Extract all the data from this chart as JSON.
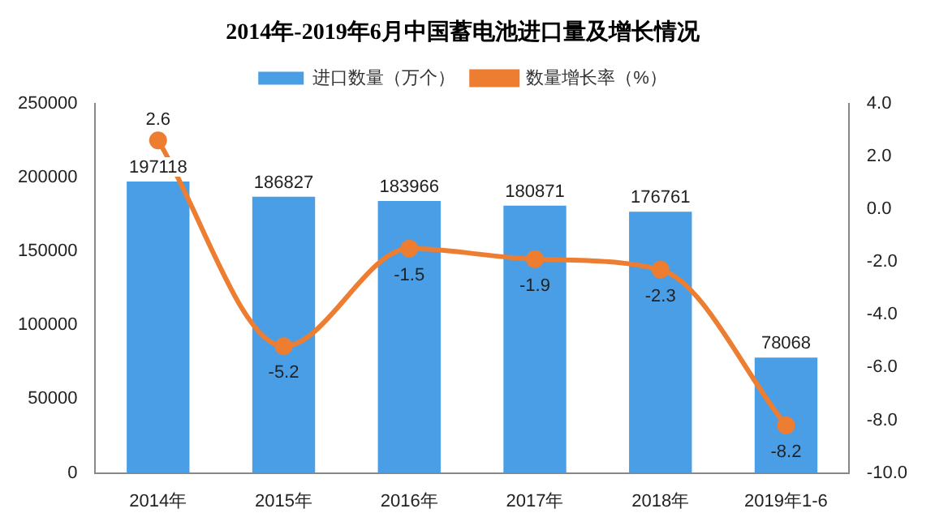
{
  "chart_data": {
    "type": "bar",
    "title": "2014年-2019年6月中国蓄电池进口量及增长情况",
    "categories": [
      "2014年",
      "2015年",
      "2016年",
      "2017年",
      "2018年",
      "2019年1-6"
    ],
    "series": [
      {
        "name": "进口数量（万个）",
        "color": "#4a9ee6",
        "values": [
          197118,
          186827,
          183966,
          180871,
          176761,
          78068
        ]
      },
      {
        "name": "数量增长率（%）",
        "type": "line",
        "axis": "y2",
        "color": "#ed7d31",
        "values": [
          2.6,
          -5.2,
          -1.5,
          -1.9,
          -2.3,
          -8.2
        ]
      }
    ],
    "ylim": [
      0,
      250000
    ],
    "yticks": [
      0,
      50000,
      100000,
      150000,
      200000,
      250000
    ],
    "y2lim": [
      -10,
      4
    ],
    "y2ticks": [
      {
        "value": -10,
        "label": "-10.0"
      },
      {
        "value": -8,
        "label": "-8.0"
      },
      {
        "value": -6,
        "label": "-6.0"
      },
      {
        "value": -4,
        "label": "-4.0"
      },
      {
        "value": -2,
        "label": "-2.0"
      },
      {
        "value": 0,
        "label": "0.0"
      },
      {
        "value": 2,
        "label": "2.0"
      },
      {
        "value": 4,
        "label": "4.0"
      }
    ],
    "data_labels": true,
    "legend": "top",
    "grid": false,
    "marker": "circle"
  }
}
